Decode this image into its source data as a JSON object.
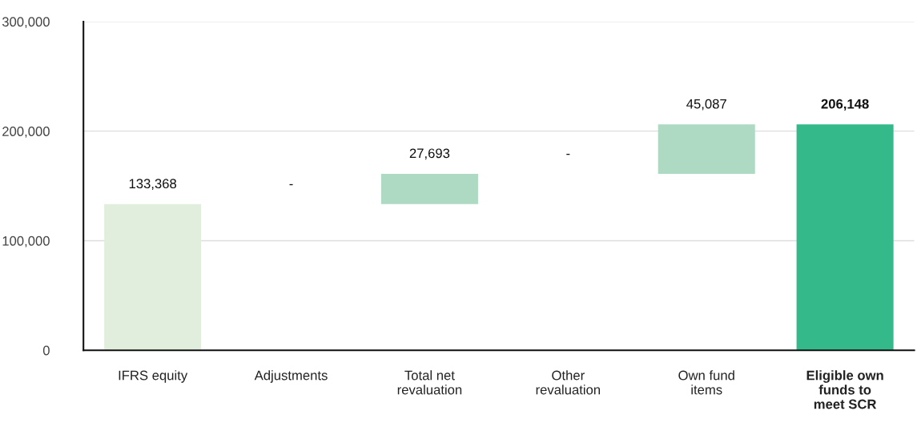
{
  "chart_data": {
    "type": "bar",
    "categories": [
      "IFRS equity",
      "Adjustments",
      "Total net\nrevaluation",
      "Other\nrevaluation",
      "Own fund\nitems",
      "Eligible own\nfunds to\nmeet SCR"
    ],
    "values": [
      133368,
      null,
      27693,
      null,
      45087,
      206148
    ],
    "base": [
      0,
      null,
      133368,
      null,
      161061,
      0
    ],
    "colors": [
      "#e2eedd",
      "#aed9c3",
      "#aed9c3",
      "#aed9c3",
      "#aed9c3",
      "#33b98a"
    ],
    "value_labels": [
      "133,368",
      null,
      "27,693",
      null,
      "45,087",
      "206,148"
    ],
    "annotations": [
      "-",
      "-"
    ],
    "ylim": [
      0,
      300000
    ],
    "yticks": [
      {
        "value": 0,
        "label": "0"
      },
      {
        "value": 100000,
        "label": "100,000"
      },
      {
        "value": 200000,
        "label": "200,000"
      },
      {
        "value": 300000,
        "label": "300,000"
      }
    ],
    "grid": "y"
  }
}
